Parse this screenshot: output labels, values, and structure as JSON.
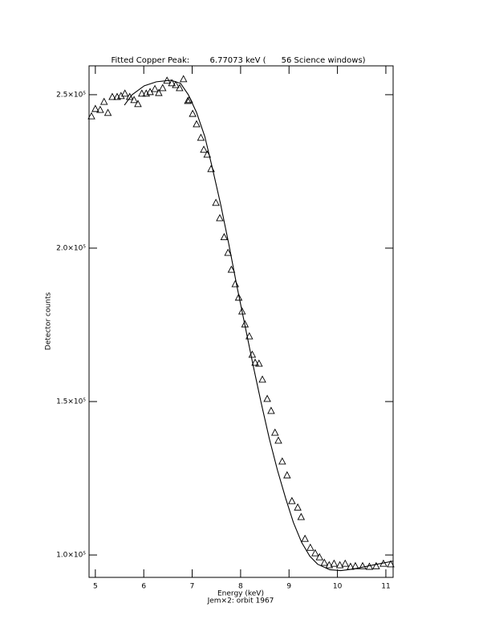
{
  "chart_data": {
    "type": "scatter",
    "title": "Fitted Copper Peak:        6.77073 keV (      56 Science windows)",
    "xlabel": "Energy (keV)",
    "caption": "Jem×2: orbit 1967",
    "ylabel": "Detector counts",
    "xlim": [
      4.87,
      11.15
    ],
    "ylim": [
      92700,
      259400
    ],
    "xticks": [
      5,
      6,
      7,
      8,
      9,
      10,
      11
    ],
    "yticks": [
      {
        "value": 100000,
        "label": "1.0×10⁵"
      },
      {
        "value": 150000,
        "label": "1.5×10⁵"
      },
      {
        "value": 200000,
        "label": "2.0×10⁵"
      },
      {
        "value": 250000,
        "label": "2.5×10⁵"
      }
    ],
    "color": "#000000",
    "series": [
      {
        "mode": "markers",
        "marker": "triangle",
        "x": [
          4.92,
          5.0,
          5.1,
          5.18,
          5.26,
          5.35,
          5.45,
          5.53,
          5.61,
          5.71,
          5.8,
          5.88,
          5.96,
          6.05,
          6.13,
          6.23,
          6.31,
          6.39,
          6.48,
          6.58,
          6.66,
          6.74,
          6.82,
          6.91,
          6.94,
          7.01,
          7.09,
          7.18,
          7.24,
          7.31,
          7.39,
          7.49,
          7.57,
          7.66,
          7.74,
          7.81,
          7.89,
          7.96,
          8.03,
          8.09,
          8.18,
          8.24,
          8.3,
          8.38,
          8.45,
          8.55,
          8.63,
          8.71,
          8.78,
          8.86,
          8.96,
          9.06,
          9.18,
          9.25,
          9.33,
          9.44,
          9.54,
          9.63,
          9.73,
          9.83,
          9.93,
          10.05,
          10.16,
          10.27,
          10.37,
          10.52,
          10.66,
          10.8,
          10.95,
          11.1
        ],
        "values": [
          242900,
          245300,
          245000,
          247600,
          244000,
          249200,
          249200,
          249500,
          250300,
          249200,
          248200,
          246900,
          250300,
          250300,
          250800,
          251800,
          250500,
          252100,
          254500,
          253700,
          253100,
          252100,
          255000,
          247900,
          248200,
          243700,
          240300,
          235900,
          232000,
          230400,
          225700,
          214700,
          209700,
          203500,
          198400,
          192900,
          188200,
          183800,
          179300,
          175100,
          171200,
          165200,
          162600,
          162300,
          157100,
          150800,
          146900,
          139800,
          137200,
          130400,
          125900,
          117500,
          115400,
          112300,
          105200,
          102300,
          100500,
          99200,
          97400,
          96600,
          97100,
          96600,
          97100,
          96100,
          96300,
          96300,
          96100,
          96300,
          97100,
          96900
        ]
      },
      {
        "mode": "line",
        "x": [
          5.6,
          5.76,
          6.01,
          6.26,
          6.56,
          6.76,
          6.92,
          7.09,
          7.26,
          7.42,
          7.59,
          7.76,
          7.92,
          8.09,
          8.26,
          8.42,
          8.59,
          8.76,
          8.93,
          9.09,
          9.26,
          9.43,
          9.59,
          9.84,
          10.07,
          10.32,
          10.57,
          10.82,
          11.15
        ],
        "values": [
          246600,
          250000,
          252900,
          254200,
          254700,
          253700,
          250000,
          244200,
          236400,
          225900,
          214100,
          201000,
          187900,
          174800,
          161700,
          149900,
          138100,
          127700,
          118500,
          110600,
          104100,
          99600,
          97000,
          95200,
          94900,
          95400,
          96200,
          97000,
          98000
        ]
      }
    ]
  }
}
